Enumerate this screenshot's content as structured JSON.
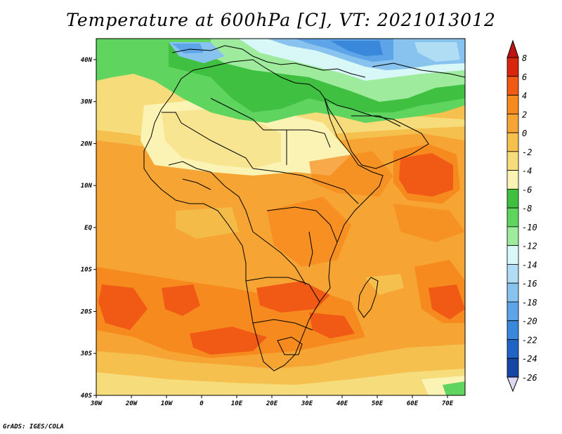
{
  "title": "Temperature at 600hPa [C], VT: 2021013012",
  "credit": "GrADS: IGES/COLA",
  "map": {
    "lon_range": [
      -30,
      75
    ],
    "lat_range": [
      -40,
      45
    ],
    "lon_ticks": [
      "30W",
      "20W",
      "10W",
      "0",
      "10E",
      "20E",
      "30E",
      "40E",
      "50E",
      "60E",
      "70E"
    ],
    "lat_ticks": [
      "40N",
      "30N",
      "20N",
      "10N",
      "EQ",
      "10S",
      "20S",
      "30S",
      "40S"
    ]
  },
  "colorbar": {
    "levels": [
      "8",
      "6",
      "4",
      "2",
      "0",
      "-2",
      "-4",
      "-6",
      "-8",
      "-10",
      "-12",
      "-14",
      "-16",
      "-18",
      "-20",
      "-22",
      "-24",
      "-26"
    ],
    "colors": [
      "#d7260b",
      "#f05a14",
      "#f78a1e",
      "#f6a534",
      "#f5c04e",
      "#f7dc7c",
      "#fbf3b4",
      "#3fc040",
      "#5fd45f",
      "#9eeb9e",
      "#d8f8f8",
      "#b0dcf4",
      "#88c2ee",
      "#5ea4e8",
      "#3a88dc",
      "#2064c6",
      "#1446a4",
      "#0c2878",
      "#102070"
    ],
    "top_arrow_color": "#c01414",
    "bottom_arrow_color": "#dcd8f4"
  }
}
